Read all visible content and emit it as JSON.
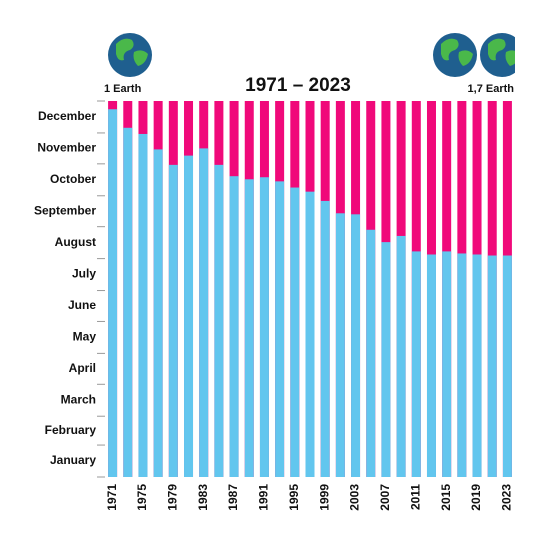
{
  "chart_data": {
    "type": "bar",
    "title": "1971 – 2023",
    "left_label": "1 Earth",
    "right_label": "1,7 Earth",
    "categories": [
      "1971",
      null,
      "1975",
      null,
      "1979",
      null,
      "1983",
      null,
      "1987",
      null,
      "1991",
      null,
      "1995",
      null,
      "1999",
      null,
      "2003",
      null,
      "2007",
      null,
      "2011",
      null,
      "2015",
      null,
      "2019",
      null,
      "2023"
    ],
    "values": [
      357,
      339,
      333,
      318,
      303,
      312,
      319,
      303,
      292,
      289,
      291,
      287,
      281,
      277,
      268,
      256,
      255,
      240,
      228,
      234,
      219,
      216,
      219,
      217,
      216,
      215,
      215
    ],
    "color": "#62c6ee",
    "remainder_color": "#f0097a",
    "y_categories": [
      "January",
      "February",
      "March",
      "April",
      "May",
      "June",
      "July",
      "August",
      "September",
      "October",
      "November",
      "December"
    ],
    "ylim": [
      0,
      365
    ],
    "yticks": [
      0,
      31,
      59,
      90,
      120,
      151,
      181,
      212,
      243,
      273,
      304,
      334,
      365
    ]
  }
}
